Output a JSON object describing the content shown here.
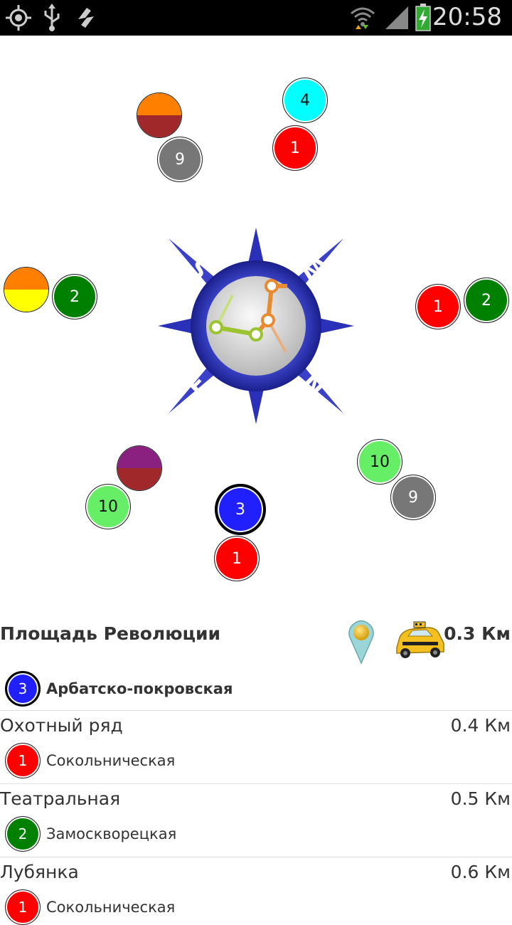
{
  "status_bar": {
    "icons": [
      "gps-icon",
      "usb-icon",
      "sync-icon",
      "wifi-icon",
      "signal-icon",
      "battery-charging-icon"
    ],
    "time": "20:58"
  },
  "compass": {
    "letters": [
      "S",
      "W",
      "E",
      "N"
    ],
    "markers": [
      {
        "group": "top-left",
        "items": [
          {
            "label": "",
            "top_color": "#FF8000",
            "bottom_color": "#A0282A"
          },
          {
            "label": "9",
            "color": "#777777"
          }
        ]
      },
      {
        "group": "top",
        "items": [
          {
            "label": "4",
            "color": "#00FFFF"
          },
          {
            "label": "1",
            "color": "#FF0000"
          }
        ]
      },
      {
        "group": "left",
        "items": [
          {
            "label": "",
            "top_color": "#FF8000",
            "bottom_color": "#FFFF00"
          },
          {
            "label": "2",
            "color": "#008000"
          }
        ]
      },
      {
        "group": "right",
        "items": [
          {
            "label": "1",
            "color": "#FF0000"
          },
          {
            "label": "2",
            "color": "#008000"
          }
        ]
      },
      {
        "group": "bottom-left",
        "items": [
          {
            "label": "",
            "top_color": "#8A2080",
            "bottom_color": "#A0282A"
          },
          {
            "label": "10",
            "color": "#66EE66"
          }
        ]
      },
      {
        "group": "bottom",
        "items": [
          {
            "label": "3",
            "color": "#2020FF"
          },
          {
            "label": "1",
            "color": "#FF0000"
          }
        ]
      },
      {
        "group": "bottom-right",
        "items": [
          {
            "label": "10",
            "color": "#66EE66"
          },
          {
            "label": "9",
            "color": "#777777"
          }
        ]
      }
    ]
  },
  "stations": [
    {
      "name": "Площадь Революции",
      "distance": "0.3 Км",
      "line_number": "3",
      "line_name": "Арбатско-покровская",
      "line_color": "#2020FF",
      "selected": true
    },
    {
      "name": "Охотный ряд",
      "distance": "0.4 Км",
      "line_number": "1",
      "line_name": "Сокольническая",
      "line_color": "#FF0000"
    },
    {
      "name": "Театральная",
      "distance": "0.5 Км",
      "line_number": "2",
      "line_name": "Замоскворецкая",
      "line_color": "#008000"
    },
    {
      "name": "Лубянка",
      "distance": "0.6 Км",
      "line_number": "1",
      "line_name": "Сокольническая",
      "line_color": "#FF0000"
    }
  ]
}
